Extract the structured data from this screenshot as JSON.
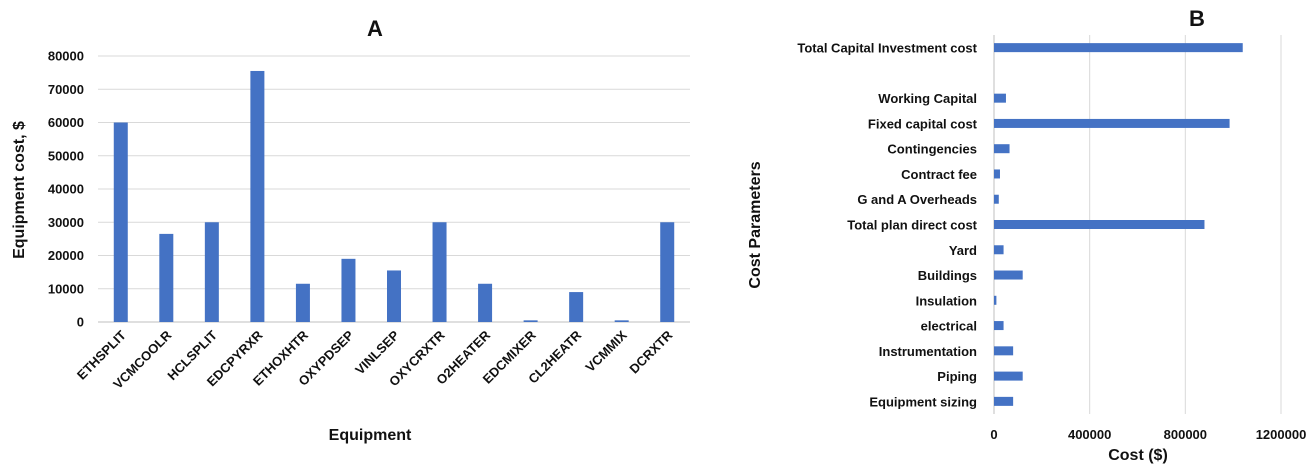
{
  "chart_data": [
    {
      "type": "bar",
      "title": "A",
      "xlabel": "Equipment",
      "ylabel": "Equipment cost, $",
      "ylim": [
        0,
        80000
      ],
      "yticks": [
        "0",
        "10000",
        "20000",
        "30000",
        "40000",
        "50000",
        "60000",
        "70000",
        "80000"
      ],
      "categories": [
        "ETHSPLIT",
        "VCMCOOLR",
        "HCLSPLIT",
        "EDCPYRXR",
        "ETHOXHTR",
        "OXYPDSEP",
        "VINLSEP",
        "OXYCRXTR",
        "O2HEATER",
        "EDCMIXER",
        "CL2HEATR",
        "VCMMIX",
        "DCRXTR"
      ],
      "values": [
        60000,
        26500,
        30000,
        75500,
        11500,
        19000,
        15500,
        30000,
        11500,
        500,
        9000,
        500,
        30000
      ],
      "grid": true,
      "color": "#4472c4"
    },
    {
      "type": "bar",
      "orientation": "horizontal",
      "title": "B",
      "xlabel": "Cost ($)",
      "ylabel": "Cost Parameters",
      "xlim": [
        0,
        1200000
      ],
      "xticks": [
        "0",
        "400000",
        "800000",
        "1200000"
      ],
      "categories": [
        "Equipment sizing",
        "Piping",
        "Instrumentation",
        "electrical",
        "Insulation",
        "Buildings",
        "Yard",
        "Total plan direct cost",
        "G and A Overheads",
        "Contract fee",
        "Contingencies",
        "Fixed capital cost",
        "Working Capital",
        "",
        "Total Capital Investment cost"
      ],
      "values": [
        80000,
        120000,
        80000,
        40000,
        10000,
        120000,
        40000,
        880000,
        20000,
        25000,
        65000,
        985000,
        50000,
        null,
        1040000
      ],
      "grid": true,
      "color": "#4472c4"
    }
  ]
}
